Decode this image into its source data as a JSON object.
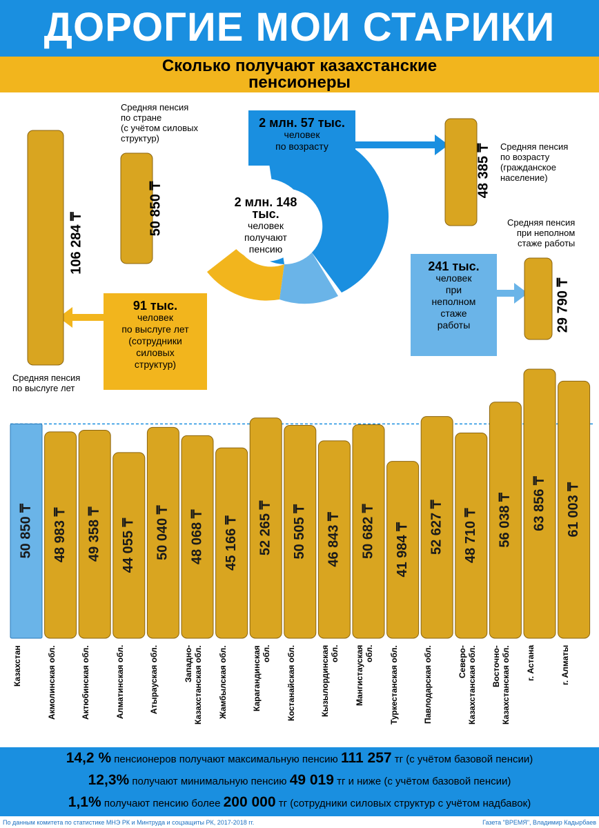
{
  "header": {
    "title": "ДОРОГИЕ МОИ СТАРИКИ",
    "subtitle": "Сколько получают казахстанские\nпенсионеры"
  },
  "top": {
    "center": {
      "count": "2 млн.\n148 тыс.",
      "desc": "человек\nполучают\nпенсию"
    },
    "age": {
      "count": "2 млн. 57 тыс.",
      "desc": "человек\nпо возрасту"
    },
    "service": {
      "count": "91 тыс.",
      "desc": "человек\nпо выслуге лет\n(сотрудники\nсиловых\nструктур)"
    },
    "incomplete": {
      "count": "241 тыс.",
      "desc": "человек\nпри\nнеполном\nстаже\nработы"
    },
    "stacks": [
      {
        "label": "Средняя пенсия\nпо выслуге лет",
        "amount": "106 284 ₸"
      },
      {
        "label": "Средняя пенсия\nпо стране\n(с учётом силовых\nструктур)",
        "amount": "50 850 ₸"
      },
      {
        "label": "Средняя пенсия\nпо возрасту\n(гражданское\nнаселение)",
        "amount": "48 385 ₸"
      },
      {
        "label": "Средняя пенсия\nпри неполном\nстаже работы",
        "amount": "29 790 ₸"
      }
    ]
  },
  "chart_data": {
    "type": "bar",
    "categories": [
      "Казахстан",
      "Акмолинская обл.",
      "Актюбинская обл.",
      "Алматинская обл.",
      "Атырауская обл.",
      "Западно-\nКазахстанская обл.",
      "Жамбылская обл.",
      "Карагандинская\nобл.",
      "Костанайская обл.",
      "Кызылординская\nобл.",
      "Мангистауская\nобл.",
      "Туркестанская обл.",
      "Павлодарская обл.",
      "Северо-\nКазахстанская обл.",
      "Восточно-\nКазахстанская обл.",
      "г. Астана",
      "г. Алматы"
    ],
    "values": [
      50850,
      48983,
      49358,
      44055,
      50040,
      48068,
      45166,
      52265,
      50505,
      46843,
      50682,
      41984,
      52627,
      48710,
      56038,
      63856,
      61003
    ],
    "value_labels": [
      "50 850 ₸",
      "48 983 ₸",
      "49 358 ₸",
      "44 055 ₸",
      "50 040 ₸",
      "48 068 ₸",
      "45 166 ₸",
      "52 265 ₸",
      "50 505 ₸",
      "46 843 ₸",
      "50 682 ₸",
      "41 984 ₸",
      "52 627 ₸",
      "48 710 ₸",
      "56 038 ₸",
      "63 856 ₸",
      "61 003 ₸"
    ],
    "colors": [
      "#6ab4e8",
      "#d9a520"
    ]
  },
  "footer": {
    "lines": [
      [
        "14,2 %",
        "пенсионеров получают максимальную пенсию",
        "111 257",
        "тг (с учётом базовой пенсии)"
      ],
      [
        "12,3%",
        "получают минимальную пенсию",
        "49 019",
        "тг и ниже (с учётом базовой пенсии)"
      ],
      [
        "1,1%",
        "получают пенсию более",
        "200 000",
        "тг (сотрудники силовых структур с учётом надбавок)"
      ]
    ],
    "source": "По данным комитета по статистике МНЭ РК и Минтруда и соцзащиты РК, 2017-2018 гг.",
    "credit": "Газета \"ВРЕМЯ\", Владимир Кадырбаев"
  }
}
